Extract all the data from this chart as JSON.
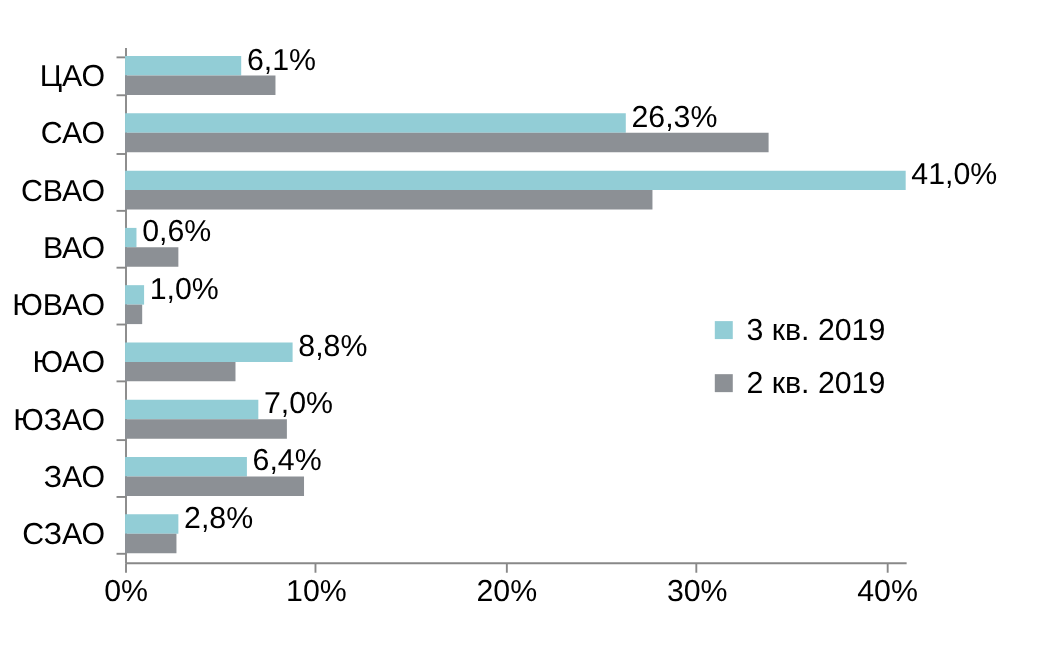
{
  "chart_data": {
    "type": "bar",
    "orientation": "horizontal",
    "categories": [
      "ЦАО",
      "САО",
      "СВАО",
      "ВАО",
      "ЮВАО",
      "ЮАО",
      "ЮЗАО",
      "ЗАО",
      "СЗАО"
    ],
    "series": [
      {
        "name": "3 кв. 2019",
        "color": "#92cdd6",
        "values": [
          6.1,
          26.3,
          41.0,
          0.6,
          1.0,
          8.8,
          7.0,
          6.4,
          2.8
        ],
        "value_labels": [
          "6,1%",
          "26,3%",
          "41,0%",
          "0,6%",
          "1,0%",
          "8,8%",
          "7,0%",
          "6,4%",
          "2,8%"
        ]
      },
      {
        "name": "2 кв. 2019",
        "color": "#8c9095",
        "values": [
          7.9,
          33.8,
          27.7,
          2.8,
          0.9,
          5.8,
          8.5,
          9.4,
          2.7
        ]
      }
    ],
    "xlim": [
      0,
      41
    ],
    "xticks": [
      {
        "value": 0,
        "label": "0%"
      },
      {
        "value": 10,
        "label": "10%"
      },
      {
        "value": 20,
        "label": "20%"
      },
      {
        "value": 30,
        "label": "30%"
      },
      {
        "value": 40,
        "label": "40%"
      }
    ],
    "grid": false,
    "legend": "right"
  }
}
